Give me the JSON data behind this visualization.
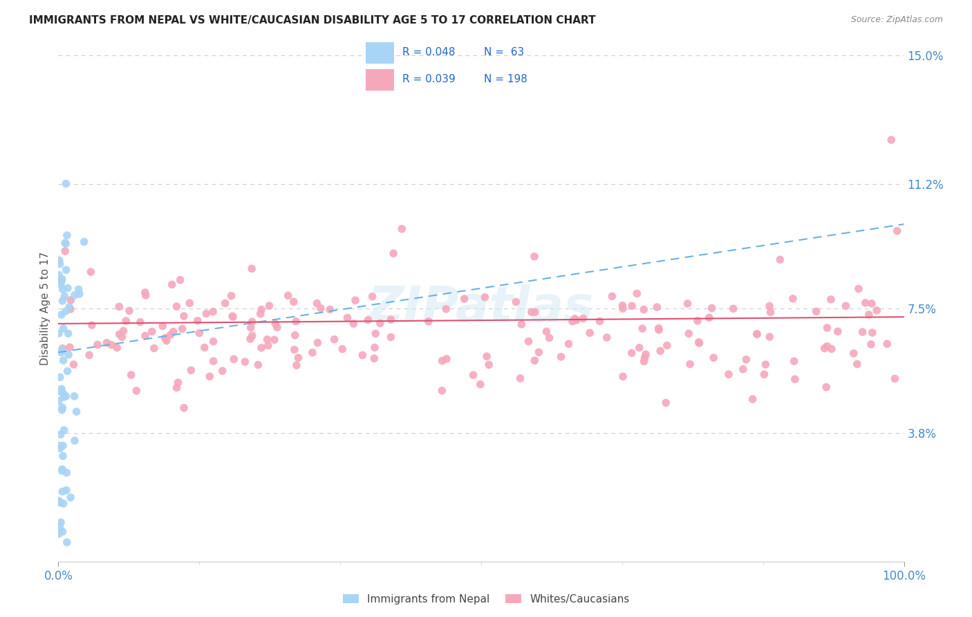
{
  "title": "IMMIGRANTS FROM NEPAL VS WHITE/CAUCASIAN DISABILITY AGE 5 TO 17 CORRELATION CHART",
  "source": "Source: ZipAtlas.com",
  "ylabel": "Disability Age 5 to 17",
  "watermark": "ZIPatlas",
  "xlim": [
    0,
    100
  ],
  "ylim": [
    0,
    15
  ],
  "ytick_positions": [
    3.8,
    7.5,
    11.2,
    15.0
  ],
  "ytick_labels": [
    "3.8%",
    "7.5%",
    "11.2%",
    "15.0%"
  ],
  "xtick_positions": [
    0,
    100
  ],
  "xtick_labels": [
    "0.0%",
    "100.0%"
  ],
  "nepal_R": 0.048,
  "nepal_N": 63,
  "white_R": 0.039,
  "white_N": 198,
  "nepal_color": "#a8d4f5",
  "white_color": "#f5a8bc",
  "nepal_line_color": "#6ab0e8",
  "white_line_color": "#e05070",
  "legend_label_nepal": "Immigrants from Nepal",
  "legend_label_white": "Whites/Caucasians",
  "background_color": "#ffffff",
  "grid_color": "#cccccc",
  "title_color": "#222222",
  "right_tick_color": "#4488cc",
  "source_color": "#888888",
  "watermark_color": "#d0e8f5",
  "watermark_alpha": 0.5,
  "nepal_line_y0": 6.2,
  "nepal_line_y1": 10.0,
  "white_line_y0": 7.05,
  "white_line_y1": 7.25,
  "legend_R_color": "#2266cc",
  "legend_N_color": "#2266cc"
}
